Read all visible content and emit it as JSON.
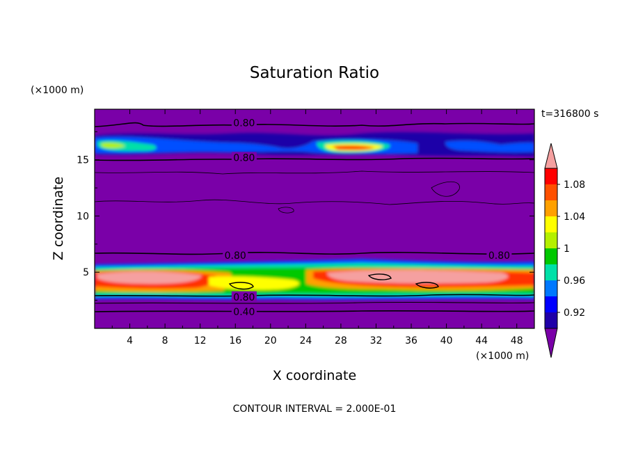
{
  "chart_data": {
    "type": "heatmap",
    "title": "Saturation Ratio",
    "xlabel": "X coordinate",
    "ylabel": "Z coordinate",
    "x_unit": "(×1000 m)",
    "y_unit": "(×1000 m)",
    "time_label": "t=316800 s",
    "footer": "CONTOUR INTERVAL = 2.000E-01",
    "xlim": [
      0,
      50
    ],
    "ylim": [
      0,
      19.5
    ],
    "x_ticks": [
      "4",
      "8",
      "12",
      "16",
      "20",
      "24",
      "28",
      "32",
      "36",
      "40",
      "44",
      "48"
    ],
    "y_ticks": [
      "5",
      "10",
      "15"
    ],
    "colorbar": {
      "labels": [
        "1.08",
        "1.04",
        "1",
        "0.96",
        "0.92"
      ],
      "levels": [
        0.9,
        0.92,
        0.94,
        0.96,
        0.98,
        1.0,
        1.02,
        1.04,
        1.06,
        1.08,
        1.1
      ],
      "colors": [
        "#7a00a8",
        "#1f00a8",
        "#0000ff",
        "#0078ff",
        "#00e0a8",
        "#00c800",
        "#b4f000",
        "#ffff00",
        "#ffa000",
        "#ff5000",
        "#ff0000",
        "#f5a0a0"
      ]
    },
    "contour_labels": [
      {
        "text": "0.80",
        "x": 17.0,
        "z": 18.3
      },
      {
        "text": "0.80",
        "x": 17.0,
        "z": 15.2
      },
      {
        "text": "0.80",
        "x": 16.0,
        "z": 6.5
      },
      {
        "text": "0.80",
        "x": 46.0,
        "z": 6.5
      },
      {
        "text": "0.80",
        "x": 17.0,
        "z": 2.8
      },
      {
        "text": "0.40",
        "x": 17.0,
        "z": 1.5
      }
    ]
  }
}
